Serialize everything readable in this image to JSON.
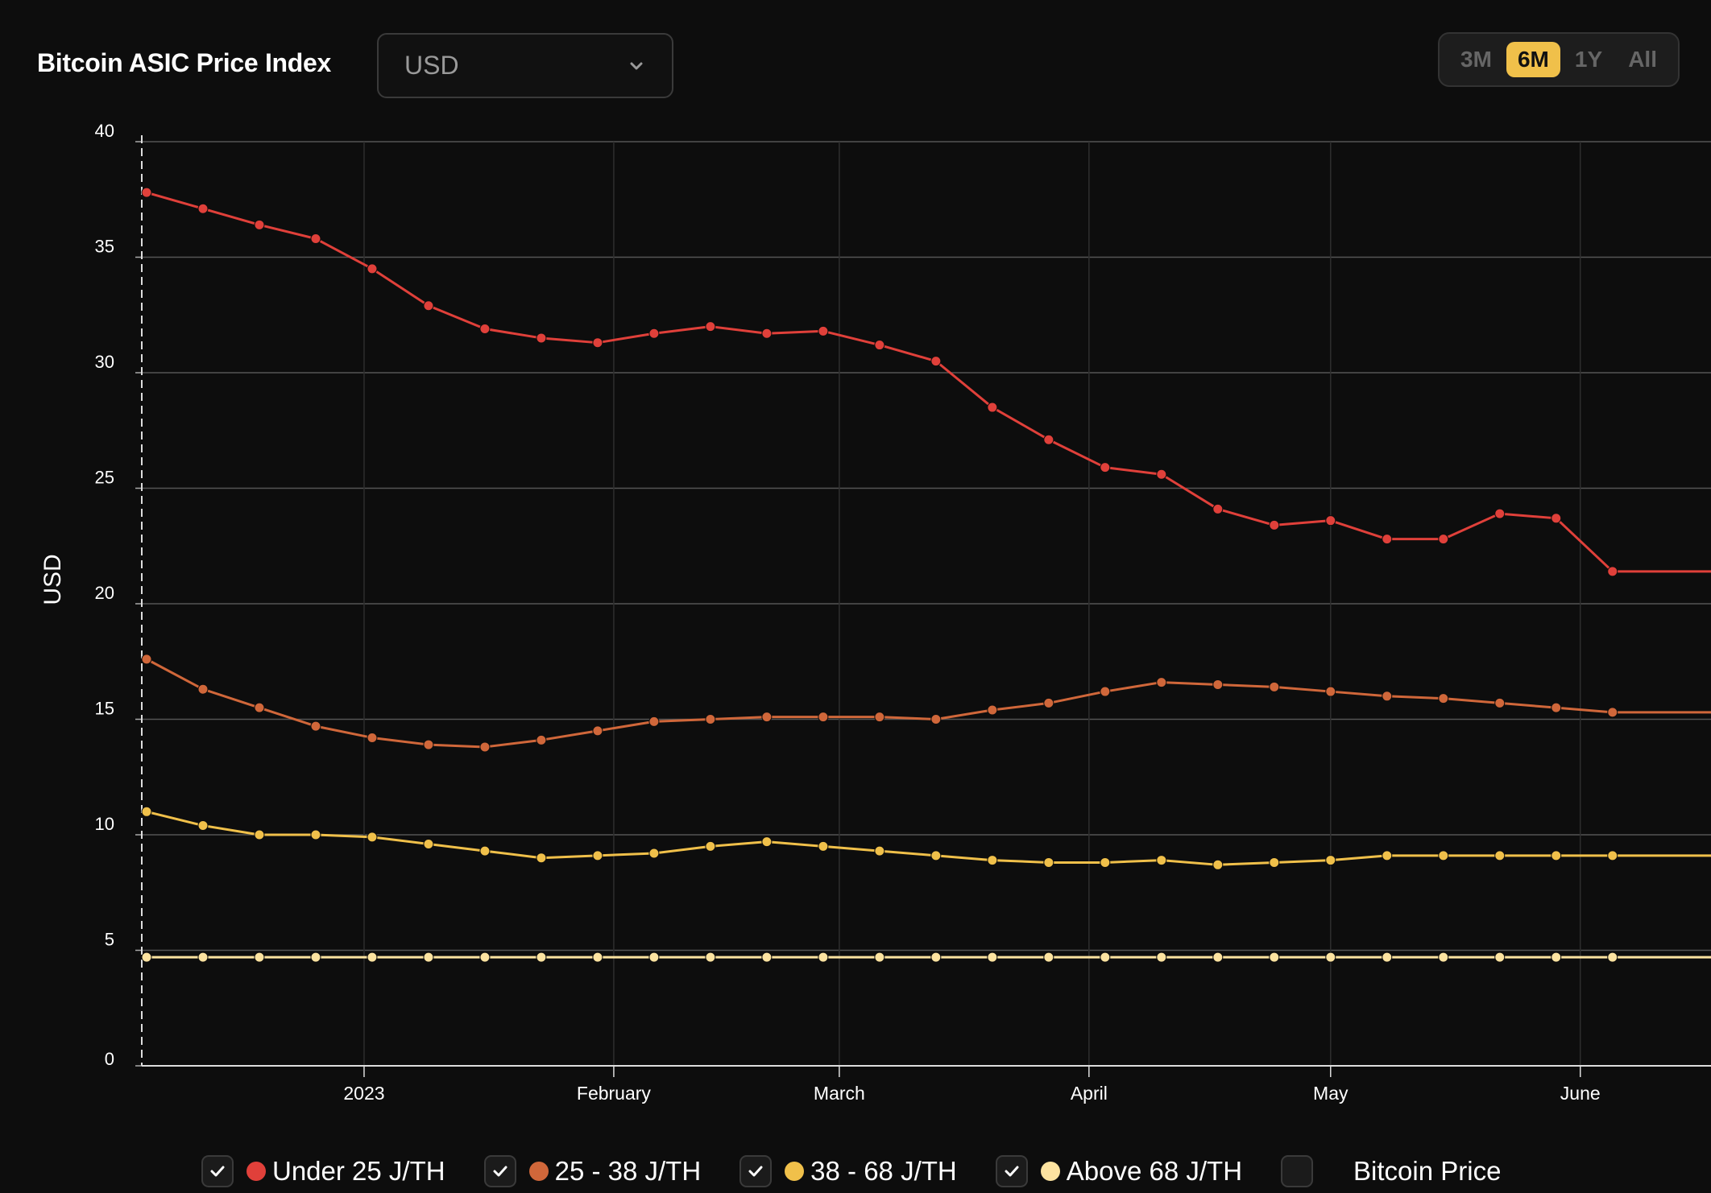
{
  "header": {
    "title": "Bitcoin ASIC Price Index",
    "currency_value": "USD",
    "ranges": [
      "3M",
      "6M",
      "1Y",
      "All"
    ],
    "active_range": "6M"
  },
  "legend": [
    {
      "label": "Under 25 J/TH",
      "checked": true,
      "color": "#e0403a"
    },
    {
      "label": "25 - 38 J/TH",
      "checked": true,
      "color": "#d0673a"
    },
    {
      "label": "38 - 68 J/TH",
      "checked": true,
      "color": "#f0c04a"
    },
    {
      "label": "Above 68 J/TH",
      "checked": true,
      "color": "#fde3a0"
    },
    {
      "label": "Bitcoin Price",
      "checked": false,
      "color": ""
    }
  ],
  "chart_data": {
    "type": "line",
    "ylabel": "USD",
    "xlabel": "",
    "ylim": [
      0,
      40
    ],
    "yticks": [
      0,
      5,
      10,
      15,
      20,
      25,
      30,
      35,
      40
    ],
    "xlim": [
      "2022-12-05",
      "2023-06-12"
    ],
    "xticks": [
      {
        "label": "2023",
        "date": "2023-01-01"
      },
      {
        "label": "February",
        "date": "2023-02-01"
      },
      {
        "label": "March",
        "date": "2023-03-01"
      },
      {
        "label": "April",
        "date": "2023-04-01"
      },
      {
        "label": "May",
        "date": "2023-05-01"
      },
      {
        "label": "June",
        "date": "2023-06-01"
      }
    ],
    "grid": true,
    "legend_position": "bottom",
    "x": [
      "2022-12-05",
      "2022-12-12",
      "2022-12-19",
      "2022-12-26",
      "2023-01-02",
      "2023-01-09",
      "2023-01-16",
      "2023-01-23",
      "2023-01-30",
      "2023-02-06",
      "2023-02-13",
      "2023-02-20",
      "2023-02-27",
      "2023-03-06",
      "2023-03-13",
      "2023-03-20",
      "2023-03-27",
      "2023-04-03",
      "2023-04-10",
      "2023-04-17",
      "2023-04-24",
      "2023-05-01",
      "2023-05-08",
      "2023-05-15",
      "2023-05-22",
      "2023-05-29",
      "2023-06-05"
    ],
    "series": [
      {
        "name": "Under 25 J/TH",
        "color": "#e0403a",
        "values": [
          37.8,
          37.1,
          36.4,
          35.8,
          34.5,
          32.9,
          31.9,
          31.5,
          31.3,
          31.7,
          32.0,
          31.7,
          31.8,
          31.2,
          30.5,
          28.5,
          27.1,
          25.9,
          25.6,
          24.1,
          23.4,
          23.6,
          22.8,
          22.8,
          23.9,
          23.7,
          21.4
        ]
      },
      {
        "name": "25 - 38 J/TH",
        "color": "#d0673a",
        "values": [
          17.6,
          16.3,
          15.5,
          14.7,
          14.2,
          13.9,
          13.8,
          14.1,
          14.5,
          14.9,
          15.0,
          15.1,
          15.1,
          15.1,
          15.0,
          15.4,
          15.7,
          16.2,
          16.6,
          16.5,
          16.4,
          16.2,
          16.0,
          15.9,
          15.7,
          15.5,
          15.3
        ]
      },
      {
        "name": "38 - 68 J/TH",
        "color": "#f0c04a",
        "values": [
          11.0,
          10.4,
          10.0,
          10.0,
          9.9,
          9.6,
          9.3,
          9.0,
          9.1,
          9.2,
          9.5,
          9.7,
          9.5,
          9.3,
          9.1,
          8.9,
          8.8,
          8.8,
          8.9,
          8.7,
          8.8,
          8.9,
          9.1,
          9.1,
          9.1,
          9.1,
          9.1
        ]
      },
      {
        "name": "Above 68 J/TH",
        "color": "#fde3a0",
        "values": [
          4.7,
          4.7,
          4.7,
          4.7,
          4.7,
          4.7,
          4.7,
          4.7,
          4.7,
          4.7,
          4.7,
          4.7,
          4.7,
          4.7,
          4.7,
          4.7,
          4.7,
          4.7,
          4.7,
          4.7,
          4.7,
          4.7,
          4.7,
          4.7,
          4.7,
          4.7,
          4.7
        ]
      }
    ]
  }
}
